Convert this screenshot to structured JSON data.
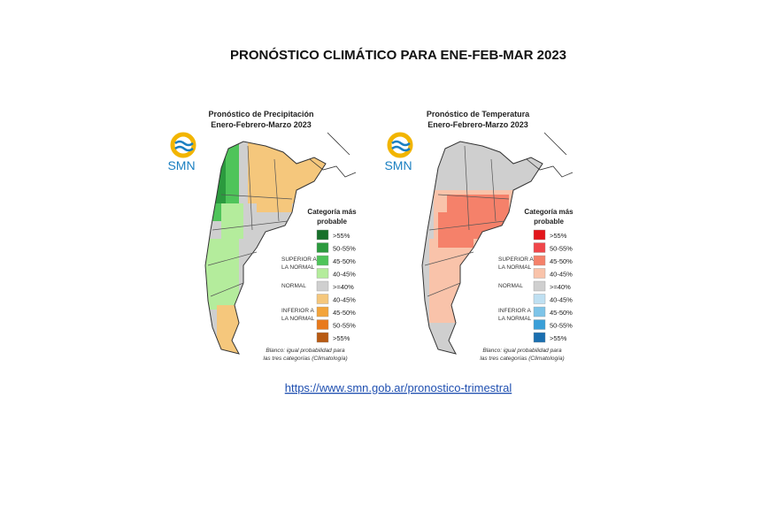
{
  "header": {
    "title": "PRONÓSTICO CLIMÁTICO PARA  ENE-FEB-MAR 2023"
  },
  "panels": [
    {
      "logo": "SMN",
      "title": "Pronóstico de Precipitación",
      "subtitle": "Enero-Febrero-Marzo 2023",
      "legend": {
        "title": [
          "Categoría más",
          "probable"
        ],
        "items": [
          {
            "label": ">55%",
            "color": "#17702a"
          },
          {
            "label": "50-55%",
            "color": "#2b9a3e"
          },
          {
            "label": "45-50%",
            "color": "#4fc45a"
          },
          {
            "label": "40-45%",
            "color": "#b4ec9c"
          },
          {
            "label": ">=40%",
            "color": "#cfcfcf"
          },
          {
            "label": "40-45%",
            "color": "#f5c77c"
          },
          {
            "label": "45-50%",
            "color": "#f3a43a"
          },
          {
            "label": "50-55%",
            "color": "#e87a1c"
          },
          {
            "label": ">55%",
            "color": "#b85a12"
          }
        ]
      },
      "groups": [
        [
          "SUPERIOR A",
          "LA NORMAL"
        ],
        [
          "NORMAL"
        ],
        [
          "INFERIOR A",
          "LA NORMAL"
        ]
      ],
      "note": [
        "Blanco: igual probabilidad para",
        "las tres categorías (Climatología)"
      ]
    },
    {
      "logo": "SMN",
      "title": "Pronóstico de Temperatura",
      "subtitle": "Enero-Febrero-Marzo 2023",
      "legend": {
        "title": [
          "Categoría más",
          "probable"
        ],
        "items": [
          {
            "label": ">55%",
            "color": "#e3151b"
          },
          {
            "label": "50-55%",
            "color": "#f0464a"
          },
          {
            "label": "45-50%",
            "color": "#f5816a"
          },
          {
            "label": "40-45%",
            "color": "#f9c3aa"
          },
          {
            "label": ">=40%",
            "color": "#cfcfcf"
          },
          {
            "label": "40-45%",
            "color": "#bfe0f2"
          },
          {
            "label": "45-50%",
            "color": "#7ec4e8"
          },
          {
            "label": "50-55%",
            "color": "#3a9fd8"
          },
          {
            "label": ">55%",
            "color": "#1a6fb0"
          }
        ]
      },
      "groups": [
        [
          "SUPERIOR A",
          "LA NORMAL"
        ],
        [
          "NORMAL"
        ],
        [
          "INFERIOR A",
          "LA NORMAL"
        ]
      ],
      "note": [
        "Blanco: igual probabilidad para",
        "las tres categorías (Climatología)"
      ]
    }
  ],
  "link": "https://www.smn.gob.ar/pronostico-trimestral"
}
